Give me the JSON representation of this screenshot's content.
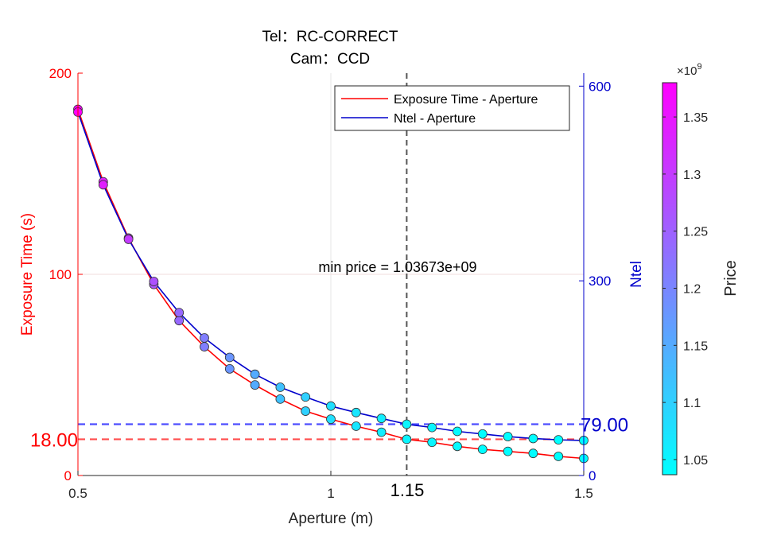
{
  "chart_data": {
    "type": "line",
    "title_lines": [
      "Tel：RC-CORRECT",
      "Cam：CCD"
    ],
    "xlabel": "Aperture (m)",
    "ylabel_left": "Exposure Time (s)",
    "ylabel_right": "Ntel",
    "xlim": [
      0.5,
      1.5
    ],
    "ylim_left": [
      0,
      200
    ],
    "ylim_right": [
      0,
      620
    ],
    "x_ticks": [
      0.5,
      1,
      1.5
    ],
    "x_tick_labels": [
      "0.5",
      "1",
      "1.5"
    ],
    "y_left_ticks": [
      0,
      100,
      200
    ],
    "y_left_tick_labels": [
      "0",
      "100",
      "200"
    ],
    "y_right_ticks": [
      0,
      300,
      600
    ],
    "y_right_tick_labels": [
      "0",
      "300",
      "600"
    ],
    "grid": true,
    "legend_position": "top-right",
    "series": [
      {
        "name": "Exposure Time - Aperture",
        "axis": "left",
        "color": "#ff0000",
        "x": [
          0.5,
          0.55,
          0.6,
          0.65,
          0.7,
          0.75,
          0.8,
          0.85,
          0.9,
          0.95,
          1.0,
          1.05,
          1.1,
          1.15,
          1.2,
          1.25,
          1.3,
          1.35,
          1.4,
          1.45,
          1.5
        ],
        "y": [
          182,
          146,
          118,
          95,
          77,
          64,
          53,
          45,
          38,
          32,
          28,
          24.5,
          21.5,
          18,
          16.5,
          14.5,
          13,
          12,
          11,
          9.5,
          8.5
        ]
      },
      {
        "name": "Ntel - Aperture",
        "axis": "right",
        "color": "#0000cc",
        "x": [
          0.5,
          0.55,
          0.6,
          0.65,
          0.7,
          0.75,
          0.8,
          0.85,
          0.9,
          0.95,
          1.0,
          1.05,
          1.1,
          1.15,
          1.2,
          1.25,
          1.3,
          1.35,
          1.4,
          1.45,
          1.5
        ],
        "y": [
          560,
          448,
          364,
          299,
          251,
          212,
          182,
          156,
          136,
          121,
          107,
          97,
          88,
          79,
          74,
          68,
          64,
          60,
          57,
          55,
          54
        ]
      }
    ],
    "price_colors": [
      1.38,
      1.34,
      1.3,
      1.27,
      1.24,
      1.21,
      1.18,
      1.15,
      1.12,
      1.1,
      1.08,
      1.07,
      1.06,
      1.05,
      1.05,
      1.045,
      1.04,
      1.04,
      1.04,
      1.037,
      1.037
    ],
    "vline_x": 1.15,
    "vline_label": "1.15",
    "hline_left": {
      "value": 18,
      "label": "18.00",
      "color": "#ff4d4d"
    },
    "hline_right": {
      "value": 79,
      "label": "79.00",
      "color": "#4d4dff"
    },
    "annotation": "min price = 1.03673e+09",
    "colorbar": {
      "label": "Price",
      "exponent_base": "×10",
      "exponent_power": "9",
      "range": [
        1.03673,
        1.38
      ],
      "ticks": [
        1.05,
        1.1,
        1.15,
        1.2,
        1.25,
        1.3,
        1.35
      ],
      "tick_labels": [
        "1.05",
        "1.1",
        "1.15",
        "1.2",
        "1.25",
        "1.3",
        "1.35"
      ],
      "color_low": "#00ffff",
      "color_high": "#ff00ff"
    }
  }
}
